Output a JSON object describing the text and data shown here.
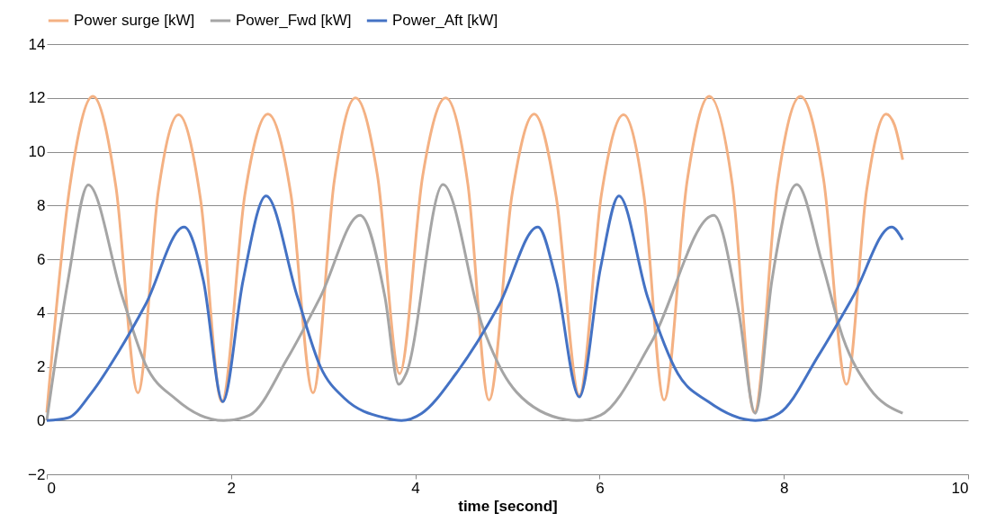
{
  "chart_data": {
    "type": "line",
    "xlabel": "time [second]",
    "xlim": [
      0,
      10
    ],
    "xticks": [
      0,
      2,
      4,
      6,
      8,
      10
    ],
    "ylim": [
      -2,
      14
    ],
    "yticks": [
      -2,
      0,
      2,
      4,
      6,
      8,
      10,
      12,
      14
    ],
    "grid": "y",
    "legend": "top",
    "marker": "none",
    "line_style": "solid",
    "series": [
      {
        "name": "Power surge [kW]",
        "color": "#f4b183",
        "x": [
          0,
          0.25,
          0.5,
          0.75,
          0.99,
          1.21,
          1.43,
          1.67,
          1.9,
          2.15,
          2.4,
          2.65,
          2.89,
          3.12,
          3.35,
          3.59,
          3.83,
          4.08,
          4.33,
          4.57,
          4.8,
          5.05,
          5.29,
          5.53,
          5.78,
          6.02,
          6.26,
          6.48,
          6.7,
          6.95,
          7.19,
          7.44,
          7.68,
          7.93,
          8.18,
          8.43,
          8.68,
          8.9,
          9.11,
          9.2,
          9.29
        ],
        "values": [
          0.3,
          8.7,
          12.06,
          8.7,
          1.03,
          8.5,
          11.37,
          8.2,
          0.7,
          8.4,
          11.4,
          8.4,
          1.03,
          8.9,
          12.0,
          9.1,
          1.74,
          9.1,
          12.0,
          8.8,
          0.76,
          8.4,
          11.4,
          8.3,
          0.94,
          8.4,
          11.37,
          8.4,
          0.76,
          8.9,
          12.06,
          8.8,
          0.3,
          8.8,
          12.06,
          9.0,
          1.35,
          8.6,
          11.4,
          11.0,
          9.7
        ]
      },
      {
        "name": "Power_Fwd [kW]",
        "color": "#a5a5a5",
        "x": [
          0,
          0.23,
          0.45,
          0.82,
          1.07,
          1.4,
          1.92,
          2.2,
          2.61,
          2.97,
          3.4,
          3.67,
          3.82,
          3.9,
          4.3,
          4.73,
          5.02,
          5.1,
          5.64,
          5.75,
          6.01,
          6.56,
          7.24,
          7.51,
          7.69,
          7.87,
          8.14,
          8.42,
          8.64,
          8.93,
          9.29
        ],
        "values": [
          0,
          5.2,
          8.76,
          4.6,
          2.1,
          0.8,
          0,
          0.2,
          2.3,
          4.6,
          7.63,
          4.6,
          1.35,
          1.74,
          8.78,
          3.5,
          1.4,
          1.05,
          0.03,
          0,
          0.2,
          2.9,
          7.63,
          4.05,
          0.27,
          5.2,
          8.78,
          5.8,
          3.1,
          1.2,
          0.27
        ]
      },
      {
        "name": "Power_Aft [kW]",
        "color": "#4472c4",
        "x": [
          0,
          0.23,
          0.49,
          0.78,
          1.07,
          1.49,
          1.7,
          1.91,
          2.13,
          2.38,
          2.72,
          2.97,
          3.23,
          3.67,
          3.85,
          4.07,
          4.44,
          4.91,
          5.33,
          5.53,
          5.78,
          6.01,
          6.21,
          6.52,
          6.85,
          7.18,
          7.69,
          7.95,
          8.38,
          8.75,
          9.17,
          9.29
        ],
        "values": [
          0,
          0.1,
          1.05,
          2.56,
          4.3,
          7.2,
          5.2,
          0.7,
          5.2,
          8.35,
          4.6,
          2.0,
          0.83,
          0.1,
          0,
          0.27,
          1.74,
          4.3,
          7.2,
          5.2,
          0.88,
          5.67,
          8.35,
          4.6,
          1.74,
          0.7,
          0,
          0.27,
          2.44,
          4.6,
          7.2,
          6.72
        ]
      }
    ]
  }
}
